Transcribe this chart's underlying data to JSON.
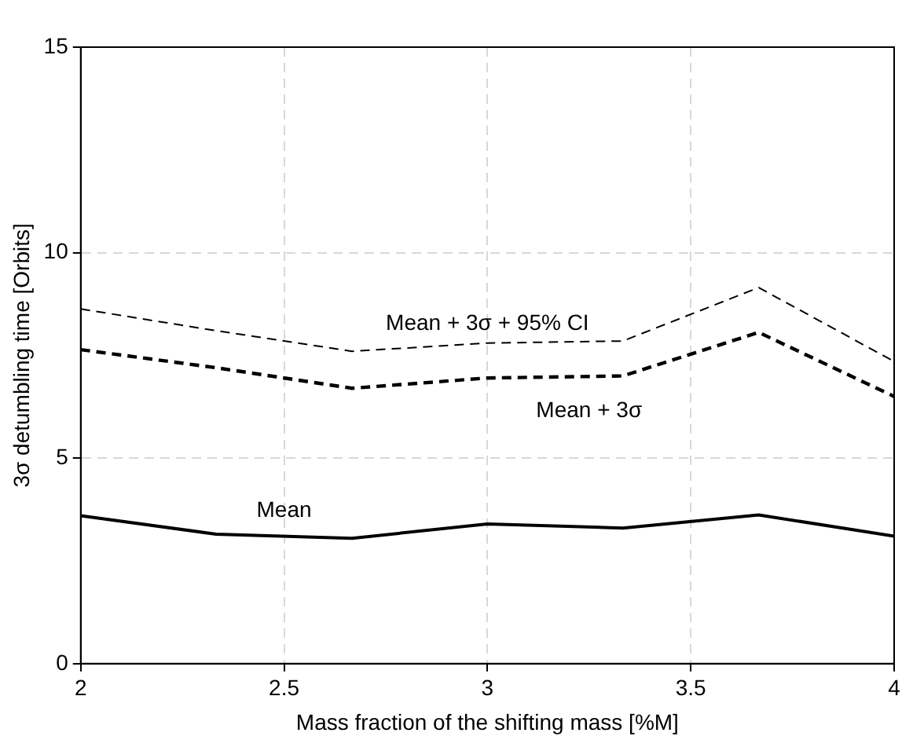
{
  "chart_data": {
    "type": "line",
    "xlabel": "Mass fraction of the shifting mass [%M]",
    "ylabel": "3σ detumbling time [Orbits]",
    "x": [
      2,
      2.333,
      2.667,
      3,
      3.333,
      3.667,
      4
    ],
    "series": [
      {
        "name": "Mean",
        "color": "#000000",
        "line_style": "solid",
        "values": [
          3.6,
          3.15,
          3.05,
          3.4,
          3.3,
          3.62,
          3.1
        ]
      },
      {
        "name": "Mean + 3σ",
        "color": "#000000",
        "line_style": "dashed",
        "values": [
          7.64,
          7.2,
          6.7,
          6.95,
          7.0,
          8.06,
          6.5
        ]
      },
      {
        "name": "Mean + 3σ + 95% CI",
        "color": "#000000",
        "line_style": "dashed",
        "values": [
          8.63,
          8.1,
          7.6,
          7.8,
          7.85,
          9.15,
          7.35
        ]
      }
    ],
    "xlim": [
      2,
      4
    ],
    "ylim": [
      0,
      15
    ],
    "xticks": [
      2,
      2.5,
      3,
      3.5,
      4
    ],
    "yticks": [
      0,
      5,
      10,
      15
    ],
    "grid": true,
    "legend": false,
    "marker": "none"
  }
}
